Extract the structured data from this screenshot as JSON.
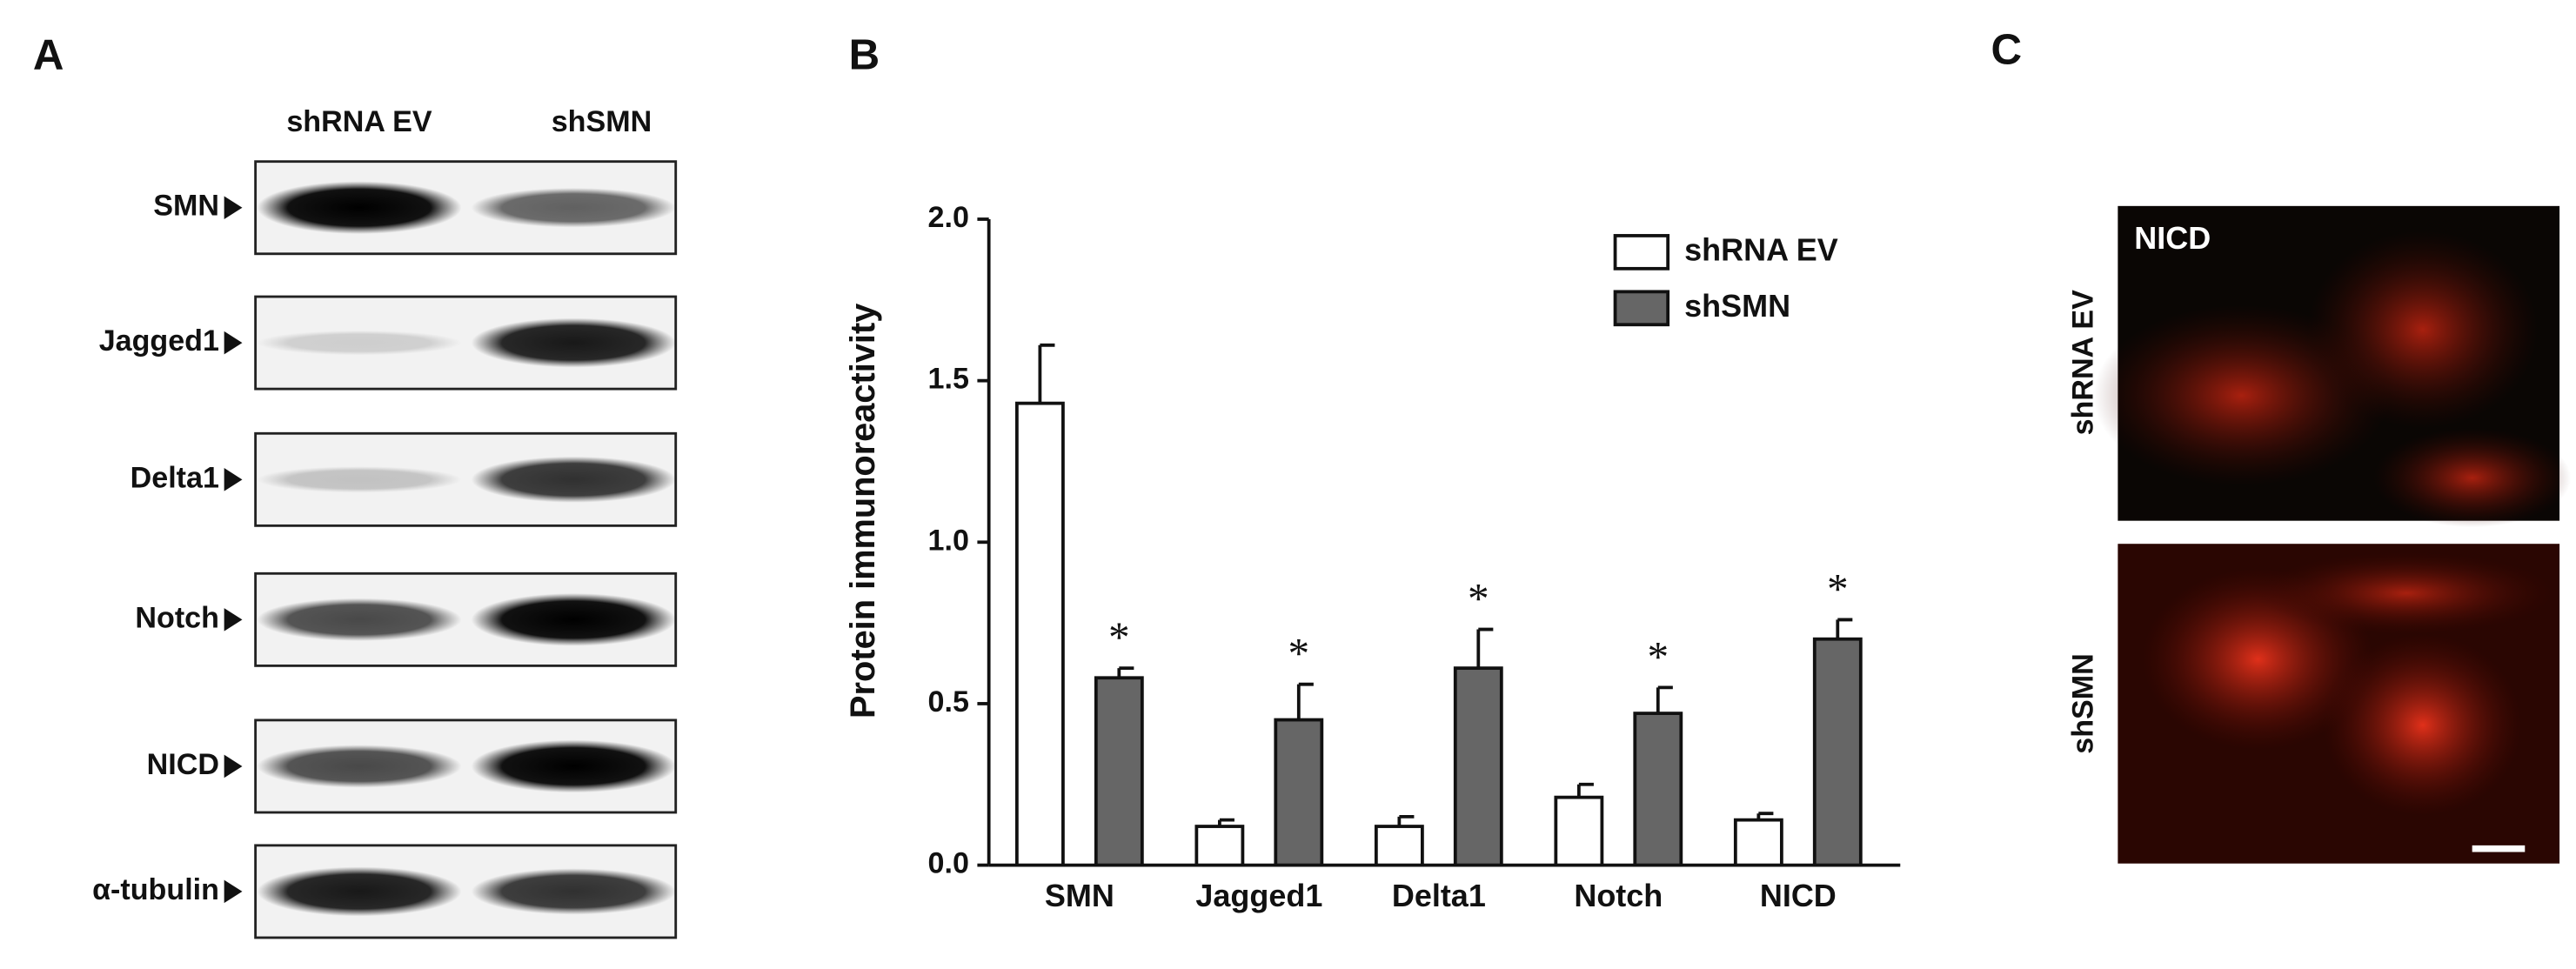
{
  "panels": {
    "a": "A",
    "b": "B",
    "c": "C"
  },
  "blot": {
    "lanes": [
      "shRNA EV",
      "shSMN"
    ],
    "rows": [
      "SMN",
      "Jagged1",
      "Delta1",
      "Notch",
      "NICD",
      "α-tubulin"
    ]
  },
  "images": {
    "stain": "NICD",
    "rows": [
      "shRNA EV",
      "shSMN"
    ]
  },
  "chart_data": {
    "type": "bar",
    "ylabel": "Protein immunoreactivity",
    "categories": [
      "SMN",
      "Jagged1",
      "Delta1",
      "Notch",
      "NICD"
    ],
    "series": [
      {
        "name": "shRNA EV",
        "color": "#ffffff",
        "values": [
          1.43,
          0.12,
          0.12,
          0.21,
          0.14
        ],
        "errors": [
          0.18,
          0.02,
          0.03,
          0.04,
          0.02
        ]
      },
      {
        "name": "shSMN",
        "color": "#666666",
        "values": [
          0.58,
          0.45,
          0.61,
          0.47,
          0.7
        ],
        "errors": [
          0.03,
          0.11,
          0.12,
          0.08,
          0.06
        ],
        "annotations": [
          "*",
          "*",
          "*",
          "*",
          "*"
        ]
      }
    ],
    "ylim": [
      0,
      2.0
    ],
    "yticks": [
      {
        "value": 0,
        "label": "0.0"
      },
      0.5,
      {
        "value": 1,
        "label": "1.0"
      },
      1.5,
      {
        "value": 2,
        "label": "2.0"
      }
    ],
    "legend": "upper right"
  }
}
